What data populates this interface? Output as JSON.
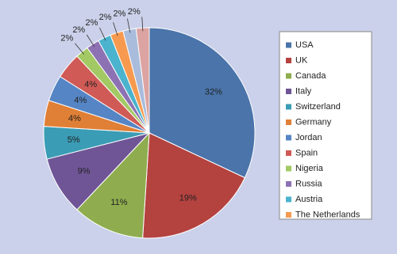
{
  "chart_data": {
    "type": "pie",
    "categories": [
      "USA",
      "UK",
      "Canada",
      "Italy",
      "Switzerland",
      "Germany",
      "Jordan",
      "Spain",
      "Nigeria",
      "Russia",
      "Austria",
      "The Netherlands",
      null,
      null
    ],
    "values": [
      32,
      19,
      11,
      9,
      5,
      4,
      4,
      4,
      2,
      2,
      2,
      2,
      2,
      2
    ],
    "value_labels": [
      "32%",
      "19%",
      "11%",
      "9%",
      "5%",
      "4%",
      "4%",
      "4%",
      "2%",
      "2%",
      "2%",
      "2%",
      "2%",
      "2%"
    ],
    "colors": [
      "#4a74aa",
      "#b4423f",
      "#8fad4f",
      "#6f5596",
      "#3b9cb5",
      "#e07f36",
      "#5585c4",
      "#d05a56",
      "#a3c964",
      "#8d72b3",
      "#4bb3cd",
      "#f79a4f",
      "#a9bcdc",
      "#dba3a1"
    ],
    "legend": "right"
  }
}
